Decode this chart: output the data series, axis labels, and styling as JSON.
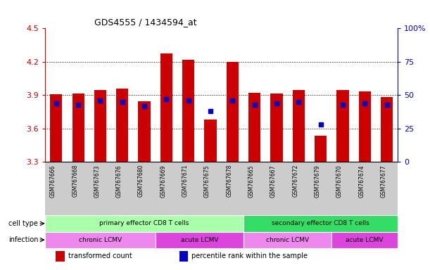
{
  "title": "GDS4555 / 1434594_at",
  "samples": [
    "GSM767666",
    "GSM767668",
    "GSM767673",
    "GSM767676",
    "GSM767680",
    "GSM767669",
    "GSM767671",
    "GSM767675",
    "GSM767678",
    "GSM767665",
    "GSM767667",
    "GSM767672",
    "GSM767679",
    "GSM767670",
    "GSM767674",
    "GSM767677"
  ],
  "transformed_counts": [
    3.91,
    3.915,
    3.945,
    3.96,
    3.845,
    4.275,
    4.215,
    3.68,
    4.2,
    3.92,
    3.915,
    3.945,
    3.535,
    3.945,
    3.935,
    3.885
  ],
  "percentile_ranks": [
    44,
    43,
    46,
    45,
    42,
    47,
    46,
    38,
    46,
    43,
    44,
    45,
    28,
    43,
    44,
    43
  ],
  "ylim": [
    3.3,
    4.5
  ],
  "yticks": [
    3.3,
    3.6,
    3.9,
    4.2,
    4.5
  ],
  "y2lim": [
    0,
    100
  ],
  "y2ticks": [
    0,
    25,
    50,
    75,
    100
  ],
  "bar_color": "#cc0000",
  "marker_color": "#0000cc",
  "cell_type_groups": [
    {
      "label": "primary effector CD8 T cells",
      "start": 0,
      "end": 9,
      "color": "#aaffaa"
    },
    {
      "label": "secondary effector CD8 T cells",
      "start": 9,
      "end": 16,
      "color": "#33dd66"
    }
  ],
  "infection_groups": [
    {
      "label": "chronic LCMV",
      "start": 0,
      "end": 5,
      "color": "#ee88ee"
    },
    {
      "label": "acute LCMV",
      "start": 5,
      "end": 9,
      "color": "#dd44dd"
    },
    {
      "label": "chronic LCMV",
      "start": 9,
      "end": 13,
      "color": "#ee88ee"
    },
    {
      "label": "acute LCMV",
      "start": 13,
      "end": 16,
      "color": "#dd44dd"
    }
  ],
  "bar_width": 0.55,
  "left_tick_color": "#cc0000",
  "right_tick_color": "#0000cc",
  "legend_items": [
    {
      "label": "transformed count",
      "color": "#cc0000"
    },
    {
      "label": "percentile rank within the sample",
      "color": "#0000cc"
    }
  ],
  "label_left_color": "black",
  "xticklabel_bg": "#cccccc"
}
